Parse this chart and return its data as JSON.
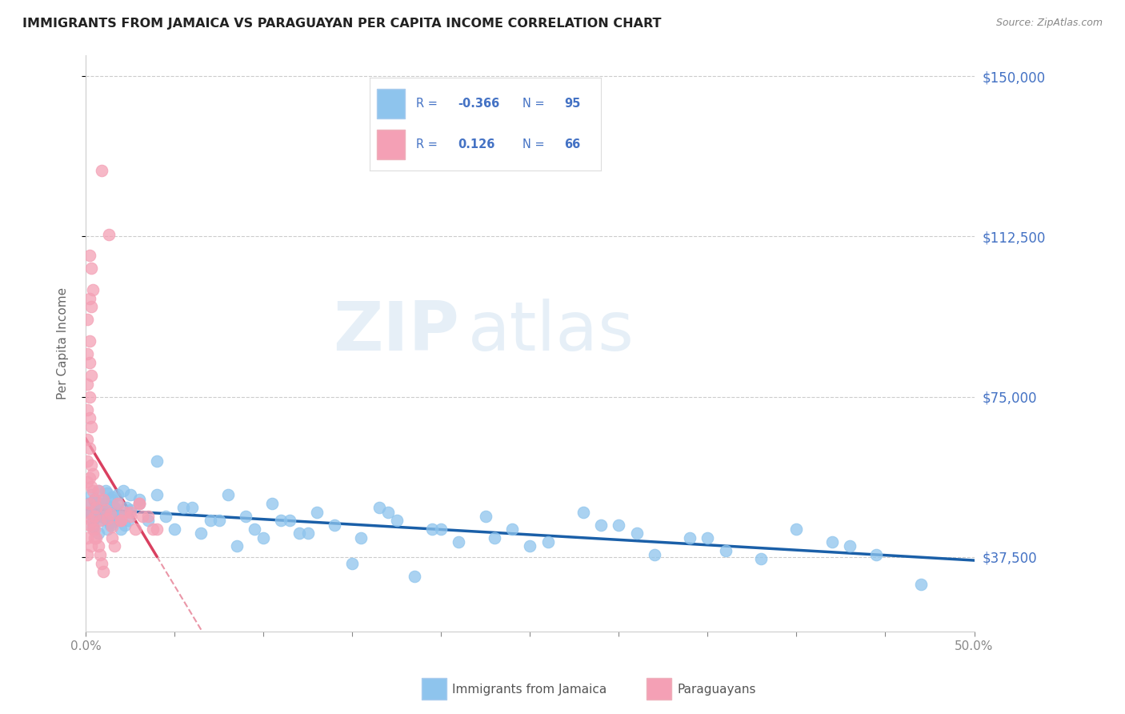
{
  "title": "IMMIGRANTS FROM JAMAICA VS PARAGUAYAN PER CAPITA INCOME CORRELATION CHART",
  "source": "Source: ZipAtlas.com",
  "ylabel": "Per Capita Income",
  "yticks": [
    37500,
    75000,
    112500,
    150000
  ],
  "ytick_labels": [
    "$37,500",
    "$75,000",
    "$112,500",
    "$150,000"
  ],
  "xlim": [
    0.0,
    0.5
  ],
  "ylim": [
    20000,
    155000
  ],
  "legend_label_blue": "Immigrants from Jamaica",
  "legend_label_pink": "Paraguayans",
  "blue_color": "#8EC4ED",
  "pink_color": "#F4A0B5",
  "trendline_blue_color": "#1A5FA8",
  "trendline_pink_color": "#D94060",
  "watermark_zip": "ZIP",
  "watermark_atlas": "atlas",
  "background_color": "#FFFFFF",
  "accent_color": "#4472C4",
  "grid_color": "#CCCCCC",
  "blue_r": "-0.366",
  "blue_n": "95",
  "pink_r": "0.126",
  "pink_n": "66",
  "blue_x": [
    0.001,
    0.002,
    0.003,
    0.004,
    0.005,
    0.006,
    0.007,
    0.008,
    0.009,
    0.01,
    0.011,
    0.012,
    0.013,
    0.014,
    0.015,
    0.016,
    0.017,
    0.018,
    0.019,
    0.02,
    0.021,
    0.022,
    0.023,
    0.024,
    0.025,
    0.003,
    0.004,
    0.005,
    0.006,
    0.007,
    0.008,
    0.009,
    0.01,
    0.011,
    0.012,
    0.013,
    0.014,
    0.015,
    0.016,
    0.017,
    0.018,
    0.02,
    0.025,
    0.03,
    0.035,
    0.04,
    0.045,
    0.05,
    0.06,
    0.07,
    0.08,
    0.09,
    0.1,
    0.11,
    0.12,
    0.13,
    0.14,
    0.155,
    0.165,
    0.175,
    0.185,
    0.195,
    0.21,
    0.225,
    0.24,
    0.26,
    0.28,
    0.3,
    0.32,
    0.34,
    0.36,
    0.38,
    0.4,
    0.42,
    0.445,
    0.03,
    0.04,
    0.055,
    0.065,
    0.075,
    0.085,
    0.095,
    0.105,
    0.115,
    0.125,
    0.15,
    0.17,
    0.2,
    0.23,
    0.25,
    0.29,
    0.31,
    0.35,
    0.43,
    0.47
  ],
  "blue_y": [
    50000,
    48000,
    52000,
    46000,
    51000,
    49000,
    53000,
    47000,
    50500,
    48500,
    46500,
    52500,
    49500,
    45500,
    51500,
    48000,
    46000,
    50000,
    47000,
    44000,
    53000,
    45000,
    49000,
    46000,
    52000,
    47500,
    44500,
    50500,
    48000,
    43000,
    46000,
    50000,
    47000,
    53000,
    44000,
    48000,
    45000,
    51000,
    49000,
    46000,
    52000,
    47000,
    48500,
    50000,
    46000,
    52000,
    47000,
    44000,
    49000,
    46000,
    52000,
    47000,
    42000,
    46000,
    43000,
    48000,
    45000,
    42000,
    49000,
    46000,
    33000,
    44000,
    41000,
    47000,
    44000,
    41000,
    48000,
    45000,
    38000,
    42000,
    39000,
    37000,
    44000,
    41000,
    38000,
    51000,
    60000,
    49000,
    43000,
    46000,
    40000,
    44000,
    50000,
    46000,
    43000,
    36000,
    48000,
    44000,
    42000,
    40000,
    45000,
    43000,
    42000,
    40000,
    31000
  ],
  "pink_x": [
    0.001,
    0.001,
    0.001,
    0.001,
    0.001,
    0.001,
    0.001,
    0.001,
    0.001,
    0.001,
    0.002,
    0.002,
    0.002,
    0.002,
    0.002,
    0.002,
    0.002,
    0.002,
    0.002,
    0.002,
    0.003,
    0.003,
    0.003,
    0.003,
    0.003,
    0.003,
    0.003,
    0.003,
    0.004,
    0.004,
    0.004,
    0.004,
    0.005,
    0.005,
    0.005,
    0.006,
    0.006,
    0.007,
    0.007,
    0.008,
    0.008,
    0.009,
    0.009,
    0.01,
    0.011,
    0.012,
    0.013,
    0.014,
    0.015,
    0.016,
    0.018,
    0.02,
    0.022,
    0.025,
    0.028,
    0.03,
    0.032,
    0.035,
    0.038,
    0.04,
    0.005,
    0.01,
    0.015,
    0.02,
    0.025,
    0.03
  ],
  "pink_y": [
    48000,
    65000,
    78000,
    93000,
    55000,
    42000,
    38000,
    72000,
    85000,
    60000,
    50000,
    63000,
    75000,
    88000,
    98000,
    45000,
    56000,
    108000,
    70000,
    83000,
    46000,
    54000,
    68000,
    80000,
    96000,
    105000,
    40000,
    59000,
    53000,
    100000,
    44000,
    57000,
    51000,
    47000,
    44000,
    42000,
    49000,
    53000,
    40000,
    38000,
    46000,
    128000,
    36000,
    51000,
    48500,
    46500,
    113000,
    47500,
    44500,
    40000,
    50000,
    46000,
    48000,
    47000,
    44000,
    50000,
    47000,
    47000,
    44000,
    44000,
    42000,
    34000,
    42000,
    46000,
    48000,
    50000
  ]
}
